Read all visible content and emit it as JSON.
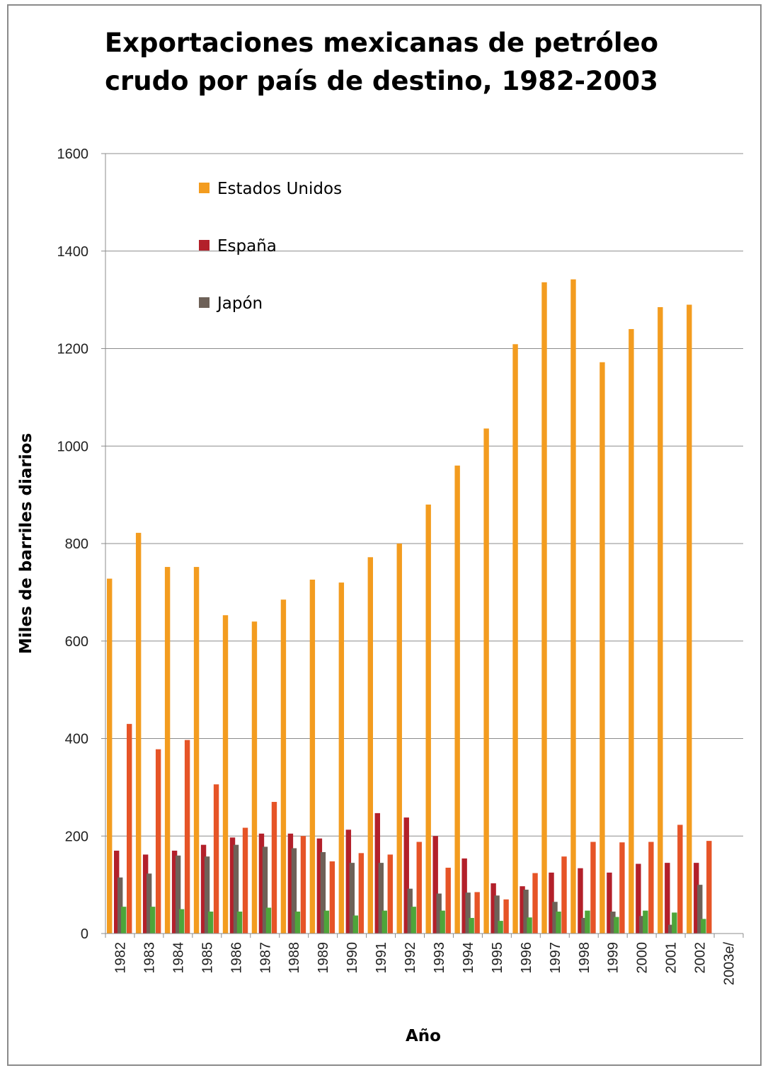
{
  "chart_data": {
    "type": "bar",
    "title_line1": "Exportaciones mexicanas de petróleo",
    "title_line2": "crudo por país de destino, 1982-2003",
    "xlabel": "Año",
    "ylabel": "Miles de barriles diarios",
    "ylim": [
      0,
      1600
    ],
    "yticks": [
      0,
      200,
      400,
      600,
      800,
      1000,
      1200,
      1400,
      1600
    ],
    "grid": true,
    "legend_position": "top-left",
    "categories": [
      "1982",
      "1983",
      "1984",
      "1985",
      "1986",
      "1987",
      "1988",
      "1989",
      "1990",
      "1991",
      "1992",
      "1993",
      "1994",
      "1995",
      "1996",
      "1997",
      "1998",
      "1999",
      "2000",
      "2001",
      "2002",
      "2003e/"
    ],
    "series": [
      {
        "name": "Estados Unidos",
        "color": "#f39c1f",
        "values": [
          728,
          822,
          752,
          752,
          653,
          640,
          685,
          726,
          720,
          772,
          800,
          880,
          960,
          1036,
          1209,
          1336,
          1342,
          1172,
          1240,
          1285,
          1290,
          null
        ]
      },
      {
        "name": "España",
        "color": "#b3202a",
        "values": [
          170,
          162,
          170,
          182,
          197,
          205,
          205,
          195,
          213,
          247,
          238,
          200,
          154,
          103,
          97,
          125,
          134,
          125,
          143,
          145,
          145,
          null
        ]
      },
      {
        "name": "Japón",
        "color": "#6e6158",
        "values": [
          115,
          123,
          160,
          158,
          182,
          178,
          175,
          167,
          145,
          145,
          92,
          82,
          84,
          78,
          90,
          65,
          32,
          45,
          36,
          18,
          100,
          null
        ]
      },
      {
        "name": "",
        "color": "#4ea53a",
        "values": [
          55,
          55,
          50,
          45,
          45,
          53,
          45,
          47,
          37,
          47,
          55,
          47,
          32,
          26,
          33,
          45,
          47,
          34,
          47,
          43,
          30,
          null
        ]
      },
      {
        "name": "",
        "color": "#e65427",
        "values": [
          430,
          378,
          397,
          306,
          217,
          270,
          200,
          148,
          165,
          162,
          188,
          135,
          85,
          70,
          124,
          158,
          188,
          187,
          188,
          223,
          190,
          null
        ]
      }
    ]
  }
}
